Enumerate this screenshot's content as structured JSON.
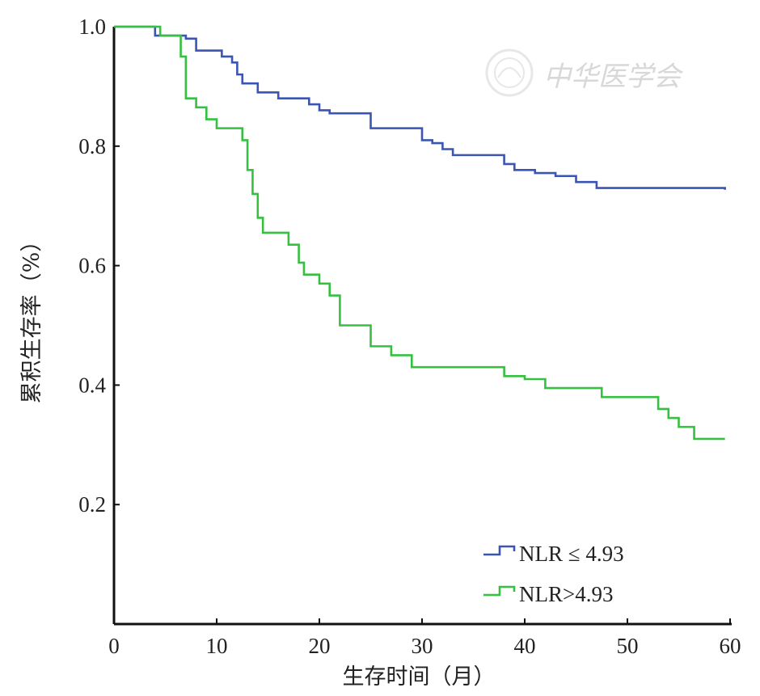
{
  "chart_data": {
    "type": "line",
    "xlabel": "生存时间（月）",
    "ylabel": "累积生存率（%）",
    "xlim": [
      0,
      60
    ],
    "ylim": [
      0,
      1.0
    ],
    "x_ticks": [
      0,
      10,
      20,
      30,
      40,
      50,
      60
    ],
    "y_ticks": [
      0.2,
      0.4,
      0.6,
      0.8,
      1.0
    ],
    "x_tick_labels": [
      "0",
      "10",
      "20",
      "30",
      "40",
      "50",
      "60"
    ],
    "y_tick_labels": [
      "0.2",
      "0.4",
      "0.6",
      "0.8",
      "1.0"
    ],
    "grid": false,
    "legend_position": "bottom-right",
    "step": true,
    "series": [
      {
        "name": "NLR ≤ 4.93",
        "color": "#3a55b4",
        "x": [
          0,
          3.5,
          4,
          7,
          8,
          10.5,
          11.5,
          12,
          12.5,
          14,
          16,
          19,
          20,
          21,
          25,
          29,
          30,
          31,
          32,
          33,
          38,
          39,
          41,
          43,
          45,
          47,
          59.5
        ],
        "y": [
          1.0,
          1.0,
          0.985,
          0.98,
          0.96,
          0.95,
          0.94,
          0.92,
          0.905,
          0.89,
          0.88,
          0.87,
          0.86,
          0.855,
          0.83,
          0.83,
          0.81,
          0.805,
          0.795,
          0.785,
          0.77,
          0.76,
          0.755,
          0.75,
          0.74,
          0.73,
          0.727
        ]
      },
      {
        "name": "NLR>4.93",
        "color": "#35c040",
        "x": [
          0,
          3.5,
          4.5,
          6.5,
          7,
          8,
          9,
          10,
          12.5,
          13,
          13.5,
          14,
          14.5,
          17,
          18,
          18.5,
          20,
          21,
          22,
          25,
          27,
          29,
          38,
          40,
          42,
          47.5,
          53,
          54,
          55,
          56.5,
          59.5
        ],
        "y": [
          1.0,
          1.0,
          0.985,
          0.95,
          0.88,
          0.865,
          0.845,
          0.83,
          0.81,
          0.76,
          0.72,
          0.68,
          0.655,
          0.635,
          0.605,
          0.585,
          0.57,
          0.55,
          0.5,
          0.465,
          0.45,
          0.43,
          0.415,
          0.41,
          0.395,
          0.38,
          0.36,
          0.345,
          0.33,
          0.31,
          0.31
        ]
      }
    ]
  },
  "watermark": {
    "text": "中华医学会",
    "icon": "medical-association-seal"
  }
}
